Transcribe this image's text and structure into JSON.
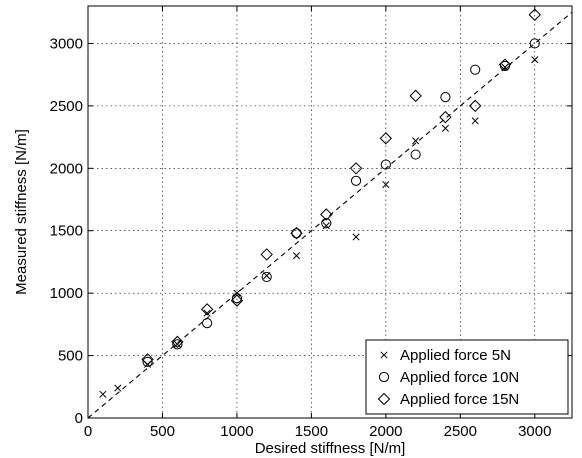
{
  "chart_data": {
    "type": "scatter",
    "xlabel": "Desired stiffness [N/m]",
    "ylabel": "Measured stiffness [N/m]",
    "xlim": [
      0,
      3250
    ],
    "ylim": [
      0,
      3300
    ],
    "x_ticks": [
      0,
      500,
      1000,
      1500,
      2000,
      2500,
      3000
    ],
    "y_ticks": [
      0,
      500,
      1000,
      1500,
      2000,
      2500,
      3000
    ],
    "grid": true,
    "legend_position": "bottom-right",
    "reference_line": {
      "style": "dashed",
      "from": [
        0,
        0
      ],
      "to": [
        3250,
        3250
      ]
    },
    "series": [
      {
        "name": "Applied force 5N",
        "marker": "x",
        "points": [
          [
            100,
            190
          ],
          [
            200,
            240
          ],
          [
            400,
            430
          ],
          [
            600,
            590
          ],
          [
            800,
            840
          ],
          [
            1000,
            1000
          ],
          [
            1200,
            1140
          ],
          [
            1400,
            1300
          ],
          [
            1600,
            1540
          ],
          [
            1800,
            1450
          ],
          [
            2000,
            1870
          ],
          [
            2200,
            2220
          ],
          [
            2400,
            2320
          ],
          [
            2600,
            2380
          ],
          [
            2800,
            2810
          ],
          [
            3000,
            2870
          ]
        ]
      },
      {
        "name": "Applied force 10N",
        "marker": "circle",
        "points": [
          [
            400,
            450
          ],
          [
            600,
            590
          ],
          [
            800,
            760
          ],
          [
            1000,
            960
          ],
          [
            1200,
            1130
          ],
          [
            1400,
            1480
          ],
          [
            1600,
            1560
          ],
          [
            1800,
            1900
          ],
          [
            2000,
            2030
          ],
          [
            2200,
            2110
          ],
          [
            2400,
            2570
          ],
          [
            2600,
            2790
          ],
          [
            2800,
            2820
          ],
          [
            3000,
            3000
          ]
        ]
      },
      {
        "name": "Applied force 15N",
        "marker": "diamond",
        "points": [
          [
            400,
            470
          ],
          [
            600,
            610
          ],
          [
            800,
            870
          ],
          [
            1000,
            940
          ],
          [
            1200,
            1310
          ],
          [
            1400,
            1480
          ],
          [
            1600,
            1630
          ],
          [
            1800,
            2000
          ],
          [
            2000,
            2240
          ],
          [
            2200,
            2580
          ],
          [
            2400,
            2410
          ],
          [
            2600,
            2500
          ],
          [
            2800,
            2830
          ],
          [
            3000,
            3230
          ]
        ]
      }
    ]
  }
}
